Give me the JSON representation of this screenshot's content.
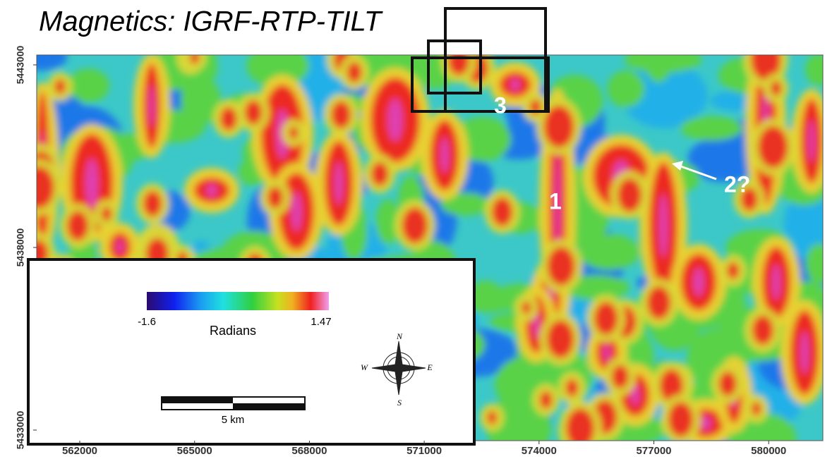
{
  "title": "Magnetics: IGRF-RTP-TILT",
  "map": {
    "xlim": [
      560875,
      581416
    ],
    "ylim": [
      5432710,
      5443270
    ],
    "xticks": [
      562000,
      565000,
      568000,
      571000,
      574000,
      577000,
      580000
    ],
    "yticks": [
      5433000,
      5438000,
      5443000
    ]
  },
  "colorbar": {
    "min": -1.6,
    "max": 1.47,
    "label": "Radians"
  },
  "annotations": [
    "1",
    "2?",
    "3"
  ],
  "compass": {
    "n": "N",
    "e": "E",
    "s": "S",
    "w": "W"
  },
  "scale_bar": "5 km"
}
